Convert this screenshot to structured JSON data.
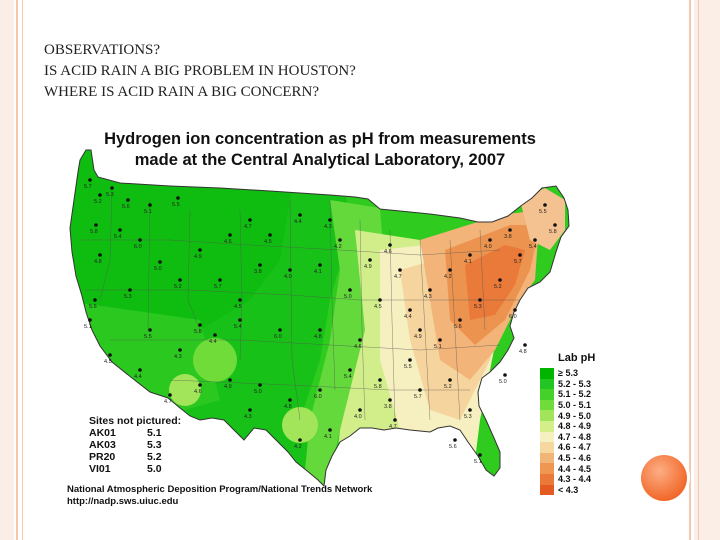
{
  "slide": {
    "lines": [
      "OBSERVATIONS?",
      "IS ACID RAIN A BIG PROBLEM IN HOUSTON?",
      "WHERE IS ACID RAIN A BIG CONCERN?"
    ]
  },
  "map": {
    "title_line1": "Hydrogen ion concentration as pH from measurements",
    "title_line2": "made at the Central Analytical Laboratory, 2007",
    "sites_header": "Sites not pictured:",
    "sites": [
      {
        "site": "AK01",
        "value": "5.1"
      },
      {
        "site": "AK03",
        "value": "5.3"
      },
      {
        "site": "PR20",
        "value": "5.2"
      },
      {
        "site": "VI01",
        "value": "5.0"
      }
    ],
    "legend_title": "Lab pH",
    "legend": [
      {
        "label": "≥ 5.3",
        "color": "#00b400"
      },
      {
        "label": "5.2 - 5.3",
        "color": "#22c522"
      },
      {
        "label": "5.1 - 5.2",
        "color": "#44d12a"
      },
      {
        "label": "5.0 - 5.1",
        "color": "#6fdc3a"
      },
      {
        "label": "4.9 - 5.0",
        "color": "#a2e55a"
      },
      {
        "label": "4.8 - 4.9",
        "color": "#d4ef8a"
      },
      {
        "label": "4.7 - 4.8",
        "color": "#f5f0bf"
      },
      {
        "label": "4.6 - 4.7",
        "color": "#f6d7a0"
      },
      {
        "label": "4.5 - 4.6",
        "color": "#f2b578"
      },
      {
        "label": "4.4 - 4.5",
        "color": "#ee9652"
      },
      {
        "label": "4.3 - 4.4",
        "color": "#ea7838"
      },
      {
        "label": "< 4.3",
        "color": "#e45a20"
      }
    ],
    "credit_line1": "National Atmospheric Deposition Program/National Trends Network",
    "credit_line2": "http://nadp.sws.uiuc.edu",
    "station_labels": [
      "5.7",
      "5.2",
      "5.3",
      "5.6",
      "5.1",
      "5.5",
      "5.8",
      "5.4",
      "6.0",
      "4.8",
      "5.0",
      "4.9",
      "4.6",
      "4.7",
      "4.5",
      "4.4",
      "4.3",
      "4.2",
      "4.1",
      "4.0",
      "3.8"
    ]
  }
}
